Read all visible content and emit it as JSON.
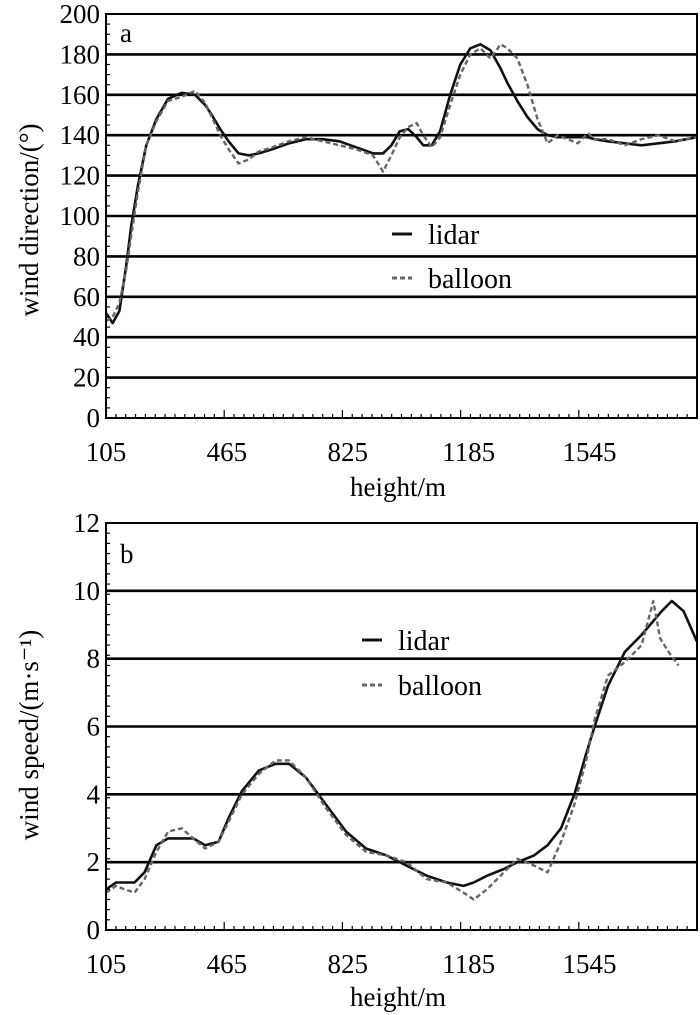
{
  "chart_data": [
    {
      "type": "line",
      "panel_label": "a",
      "xlabel": "height/m",
      "ylabel": "wind direction/(°)",
      "xlim": [
        105,
        1865
      ],
      "ylim": [
        0,
        200
      ],
      "x_ticks": [
        105,
        465,
        825,
        1185,
        1545
      ],
      "x_tick_labels": [
        "105",
        "465",
        "825",
        "1185",
        "1545"
      ],
      "y_ticks": [
        0,
        20,
        40,
        60,
        80,
        100,
        120,
        140,
        160,
        180,
        200
      ],
      "y_tick_labels": [
        "0",
        "20",
        "40",
        "60",
        "80",
        "100",
        "120",
        "140",
        "160",
        "180",
        "200"
      ],
      "grid": "horizontal",
      "legend_position": "center-right",
      "series": [
        {
          "name": "lidar",
          "style": "solid",
          "color": "#111111",
          "x": [
            105,
            125,
            145,
            165,
            180,
            200,
            225,
            255,
            290,
            330,
            370,
            400,
            420,
            445,
            470,
            500,
            530,
            560,
            600,
            650,
            700,
            750,
            800,
            850,
            900,
            930,
            955,
            980,
            1005,
            1030,
            1050,
            1075,
            1100,
            1130,
            1160,
            1190,
            1220,
            1250,
            1280,
            1300,
            1330,
            1360,
            1390,
            1420,
            1450,
            1480,
            1510,
            1540,
            1560,
            1600,
            1650,
            1700,
            1750,
            1800,
            1865
          ],
          "y": [
            52,
            47,
            53,
            75,
            95,
            115,
            135,
            148,
            158,
            161,
            160,
            155,
            150,
            143,
            137,
            131,
            130,
            131,
            133,
            136,
            138,
            138,
            137,
            134,
            131,
            131,
            135,
            142,
            143,
            139,
            135,
            135,
            142,
            160,
            175,
            183,
            185,
            182,
            173,
            166,
            157,
            149,
            143,
            140,
            139,
            139,
            139,
            139,
            138,
            137,
            136,
            135,
            136,
            137,
            139
          ]
        },
        {
          "name": "balloon",
          "style": "dashed",
          "color": "#666666",
          "x": [
            105,
            125,
            145,
            165,
            180,
            200,
            225,
            255,
            290,
            330,
            370,
            400,
            420,
            445,
            470,
            500,
            530,
            560,
            600,
            650,
            700,
            750,
            800,
            850,
            900,
            930,
            955,
            980,
            1005,
            1030,
            1050,
            1075,
            1100,
            1130,
            1160,
            1190,
            1220,
            1250,
            1280,
            1300,
            1330,
            1360,
            1390,
            1420,
            1450,
            1480,
            1510,
            1540,
            1560,
            1600,
            1650,
            1700,
            1750,
            1800,
            1865
          ],
          "y": [
            48,
            50,
            57,
            73,
            90,
            112,
            135,
            147,
            157,
            159,
            162,
            156,
            149,
            140,
            133,
            126,
            128,
            132,
            134,
            137,
            139,
            137,
            135,
            133,
            130,
            122,
            130,
            139,
            144,
            146,
            140,
            134,
            139,
            155,
            170,
            180,
            183,
            178,
            185,
            183,
            178,
            165,
            148,
            136,
            140,
            138,
            136,
            141,
            138,
            138,
            135,
            138,
            140,
            137,
            139
          ]
        }
      ]
    },
    {
      "type": "line",
      "panel_label": "b",
      "xlabel": "height/m",
      "ylabel": "wind speed/(m·s⁻¹)",
      "xlim": [
        105,
        1865
      ],
      "ylim": [
        0,
        12
      ],
      "x_ticks": [
        105,
        465,
        825,
        1185,
        1545
      ],
      "x_tick_labels": [
        "105",
        "465",
        "825",
        "1185",
        "1545"
      ],
      "y_ticks": [
        0,
        2,
        4,
        6,
        8,
        10,
        12
      ],
      "y_tick_labels": [
        "0",
        "2",
        "4",
        "6",
        "8",
        "10",
        "12"
      ],
      "grid": "horizontal",
      "legend_position": "top-center",
      "series": [
        {
          "name": "lidar",
          "style": "solid",
          "color": "#111111",
          "x": [
            105,
            135,
            160,
            190,
            220,
            255,
            290,
            330,
            365,
            400,
            440,
            470,
            510,
            560,
            610,
            650,
            700,
            760,
            820,
            880,
            940,
            1000,
            1060,
            1120,
            1170,
            1200,
            1240,
            1290,
            1330,
            1380,
            1420,
            1460,
            1500,
            1535,
            1560,
            1600,
            1650,
            1700,
            1760,
            1790,
            1825,
            1865
          ],
          "y": [
            1.2,
            1.4,
            1.4,
            1.4,
            1.7,
            2.5,
            2.7,
            2.7,
            2.7,
            2.5,
            2.6,
            3.3,
            4.1,
            4.7,
            4.9,
            4.9,
            4.5,
            3.7,
            2.9,
            2.4,
            2.2,
            1.9,
            1.6,
            1.4,
            1.3,
            1.4,
            1.6,
            1.8,
            2.0,
            2.2,
            2.5,
            3.0,
            4.0,
            5.2,
            6.0,
            7.2,
            8.2,
            8.7,
            9.4,
            9.7,
            9.4,
            8.5
          ]
        },
        {
          "name": "balloon",
          "style": "dashed",
          "color": "#666666",
          "x": [
            105,
            135,
            160,
            190,
            220,
            255,
            290,
            330,
            365,
            400,
            440,
            470,
            510,
            560,
            610,
            650,
            700,
            760,
            820,
            880,
            940,
            1000,
            1060,
            1120,
            1170,
            1200,
            1240,
            1290,
            1330,
            1380,
            1420,
            1460,
            1500,
            1535,
            1560,
            1600,
            1650,
            1700,
            1735,
            1755,
            1780,
            1810
          ],
          "y": [
            1.1,
            1.3,
            1.2,
            1.1,
            1.5,
            2.3,
            2.9,
            3.0,
            2.7,
            2.4,
            2.6,
            3.2,
            4.0,
            4.6,
            5.0,
            5.0,
            4.5,
            3.6,
            2.8,
            2.3,
            2.2,
            2.0,
            1.5,
            1.4,
            1.1,
            0.9,
            1.2,
            1.7,
            2.1,
            1.9,
            1.7,
            2.6,
            3.7,
            5.0,
            6.2,
            7.5,
            7.9,
            8.4,
            9.7,
            8.6,
            8.2,
            7.8
          ]
        }
      ]
    }
  ]
}
